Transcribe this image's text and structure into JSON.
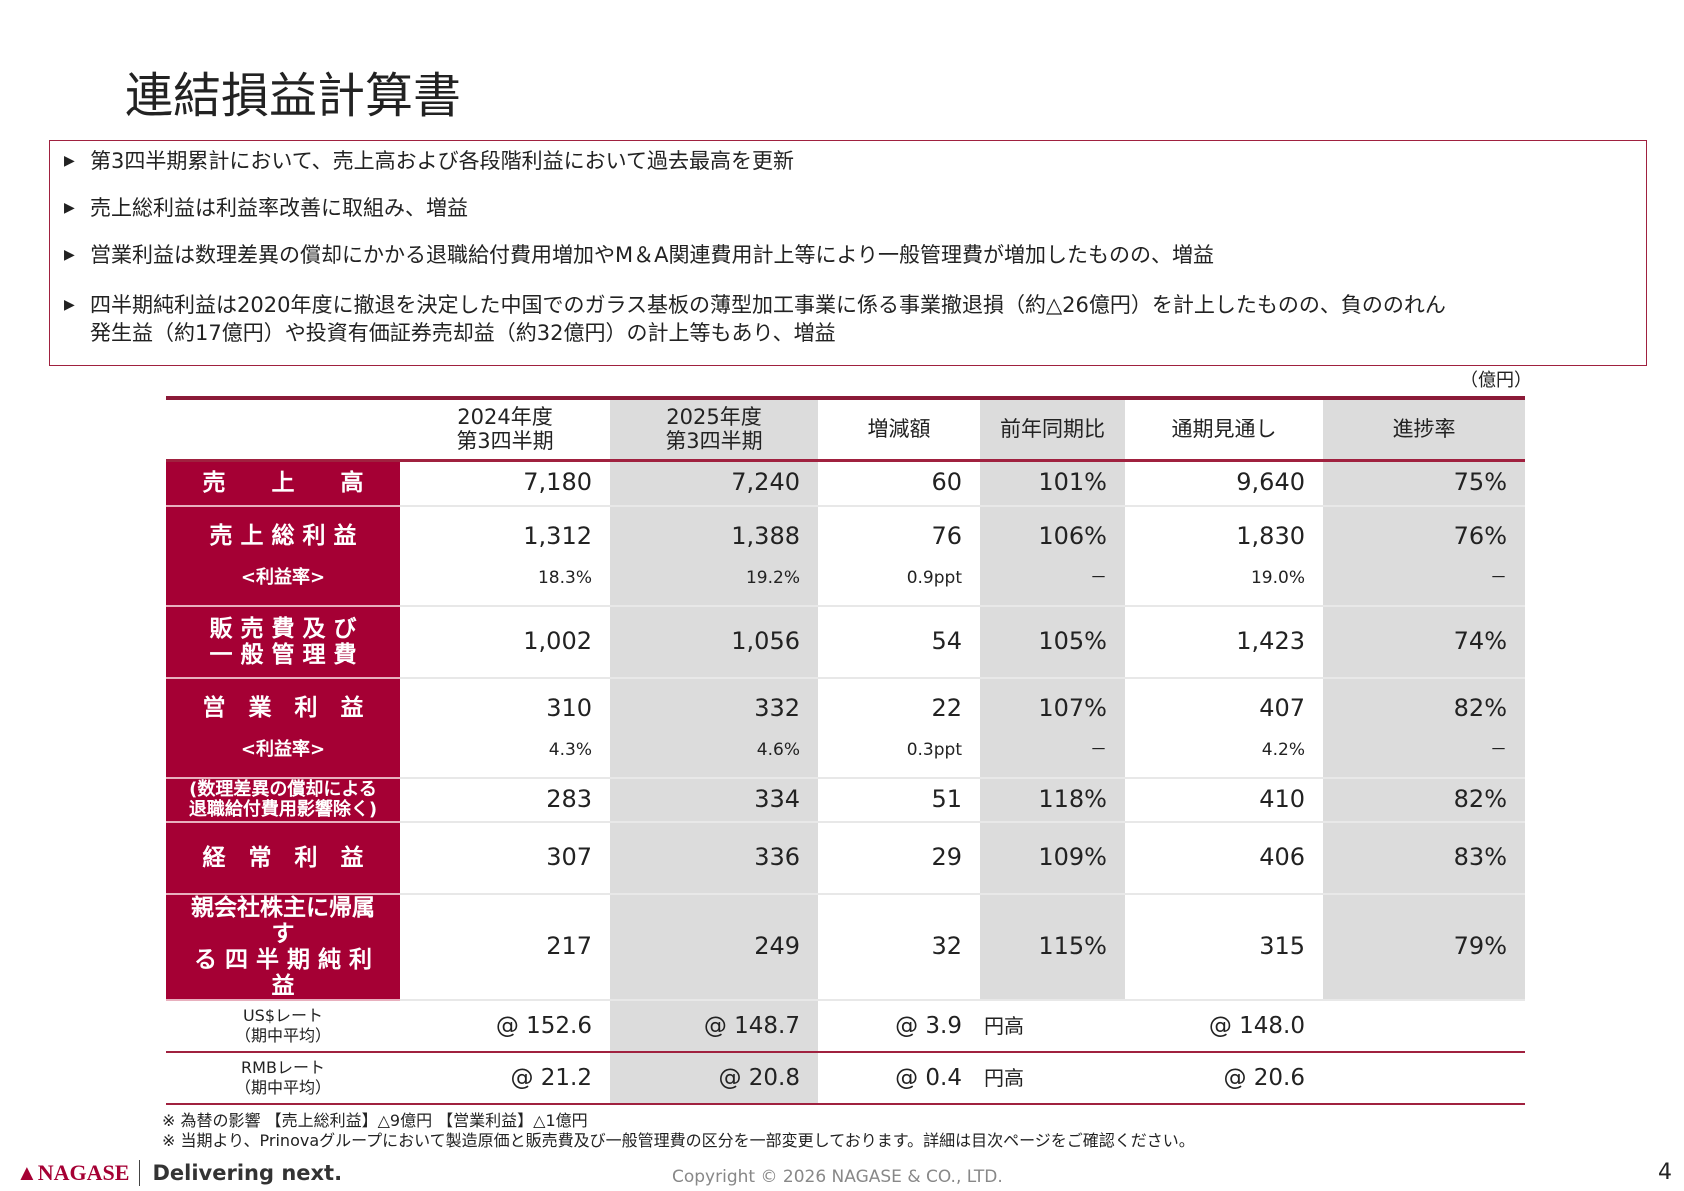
{
  "title": "連結損益計算書",
  "bullets": [
    "第3四半期累計において、売上高および各段階利益において過去最高を更新",
    "売上総利益は利益率改善に取組み、増益",
    "営業利益は数理差異の償却にかかる退職給付費用増加やM＆A関連費用計上等により一般管理費が増加したものの、増益",
    "四半期純利益は2020年度に撤退を決定した中国でのガラス基板の薄型加工事業に係る事業撤退損（約△26億円）を計上したものの、負ののれん",
    "発生益（約17億円）や投資有価証券売却益（約32億円）の計上等もあり、増益"
  ],
  "unit": "（億円）",
  "headers": [
    "2024年度",
    "第3四半期",
    "2025年度",
    "第3四半期",
    "増減額",
    "前年同期比",
    "通期見通し",
    "進捗率"
  ],
  "rows": [
    {
      "label": "売　　上　　高",
      "v": [
        "7,180",
        "7,240",
        "60",
        "101%",
        "9,640",
        "75%"
      ]
    },
    {
      "label": "売 上 総 利 益",
      "sub": "<利益率>",
      "v": [
        "1,312",
        "1,388",
        "76",
        "106%",
        "1,830",
        "76%"
      ],
      "s": [
        "18.3%",
        "19.2%",
        "0.9ppt",
        "－",
        "19.0%",
        "－"
      ]
    },
    {
      "label": "販 売 費 及 び",
      "label2": "一 般 管 理 費",
      "v": [
        "1,002",
        "1,056",
        "54",
        "105%",
        "1,423",
        "74%"
      ]
    },
    {
      "label": "営　業　利　益",
      "sub": "<利益率>",
      "v": [
        "310",
        "332",
        "22",
        "107%",
        "407",
        "82%"
      ],
      "s": [
        "4.3%",
        "4.6%",
        "0.3ppt",
        "－",
        "4.2%",
        "－"
      ]
    },
    {
      "label": "(数理差異の償却による",
      "label2": "退職給付費用影響除く)",
      "v": [
        "283",
        "334",
        "51",
        "118%",
        "410",
        "82%"
      ]
    },
    {
      "label": "経　常　利　益",
      "v": [
        "307",
        "336",
        "29",
        "109%",
        "406",
        "83%"
      ]
    },
    {
      "label": "親会社株主に帰属す",
      "label2": "る 四 半 期 純 利 益",
      "v": [
        "217",
        "249",
        "32",
        "115%",
        "315",
        "79%"
      ]
    }
  ],
  "fx": [
    {
      "label": "US$レート",
      "label2": "（期中平均）",
      "v": [
        "@ 152.6",
        "@ 148.7",
        "@ 3.9",
        "円高",
        "@ 148.0"
      ]
    },
    {
      "label": "RMBレート",
      "label2": "（期中平均）",
      "v": [
        "@ 21.2",
        "@ 20.8",
        "@ 0.4",
        "円高",
        "@ 20.6"
      ]
    }
  ],
  "notes": [
    "※ 為替の影響 【売上総利益】△9億円 【営業利益】△1億円",
    "※ 当期より、Prinovaグループにおいて製造原価と販売費及び一般管理費の区分を一部変更しております。詳細は目次ページをご確認ください。"
  ],
  "footer": {
    "logo": "NAGASE",
    "tagline": "Delivering next.",
    "copyright": "Copyright © 2026 NAGASE & CO., LTD.",
    "page": "4"
  },
  "colors": {
    "brand": "#a50034",
    "shade": "#dcdcdc"
  }
}
